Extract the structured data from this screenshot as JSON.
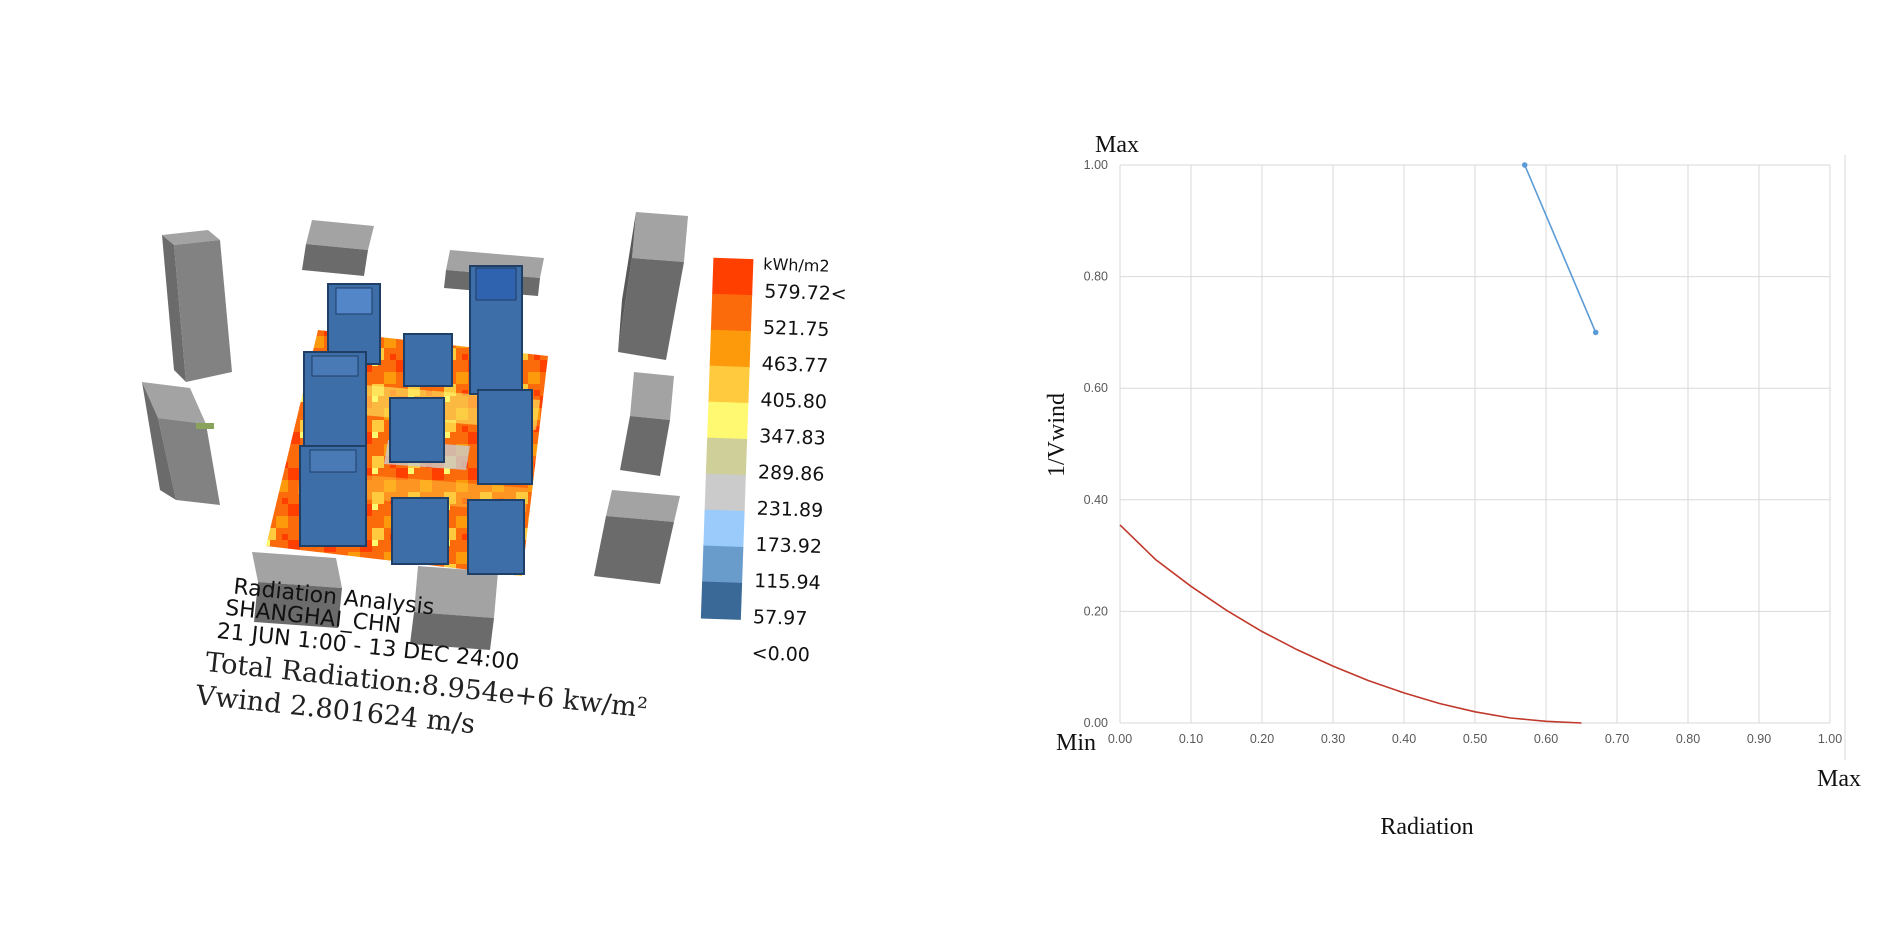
{
  "scene": {
    "legend": {
      "unit": "kWh/m2",
      "labels": [
        "579.72<",
        "521.75",
        "463.77",
        "405.80",
        "347.83",
        "289.86",
        "231.89",
        "173.92",
        "115.94",
        "57.97",
        "<0.00"
      ],
      "colors": [
        "#ff3f00",
        "#fb6a0b",
        "#fd9a0c",
        "#ffca3e",
        "#fef971",
        "#cfcf9a",
        "#cbcbcb",
        "#9bcbfb",
        "#699bcb",
        "#3a6897"
      ]
    },
    "info": {
      "line1": "Radiation Analysis",
      "line2": "SHANGHAI_CHN",
      "line3": "21 JUN 1:00 - 13 DEC 24:00",
      "line4": "Total Radiation:8.954e+6  kw/m²",
      "line5": "Vwind 2.801624 m/s"
    },
    "colors": {
      "context_top": "#a3a3a3",
      "context_side": "#6b6b6b",
      "context_front": "#828282",
      "tower_face": "#3d6ea8",
      "tower_edge": "#1f3f66"
    }
  },
  "chart_data": {
    "type": "scatter",
    "title": "",
    "xlabel": "Radiation",
    "ylabel": "1/Vwind",
    "xlim": [
      0,
      1
    ],
    "ylim": [
      0,
      1
    ],
    "x_ticks": [
      "0.00",
      "0.10",
      "0.20",
      "0.30",
      "0.40",
      "0.50",
      "0.60",
      "0.70",
      "0.80",
      "0.90",
      "1.00"
    ],
    "y_ticks": [
      "0.00",
      "0.20",
      "0.40",
      "0.60",
      "0.80",
      "1.00"
    ],
    "corner_labels": {
      "y_max": "Max",
      "origin": "Min",
      "x_max": "Max"
    },
    "grid": true,
    "series": [
      {
        "name": "points",
        "color": "#5b9bd5",
        "marker": true,
        "x": [
          0.57,
          0.67
        ],
        "y": [
          1.0,
          0.7
        ]
      },
      {
        "name": "curve",
        "color": "#c0392b",
        "marker": false,
        "x": [
          0.0,
          0.05,
          0.1,
          0.15,
          0.2,
          0.25,
          0.3,
          0.35,
          0.4,
          0.45,
          0.5,
          0.55,
          0.6,
          0.65
        ],
        "y": [
          0.355,
          0.293,
          0.245,
          0.202,
          0.164,
          0.131,
          0.102,
          0.076,
          0.054,
          0.035,
          0.02,
          0.009,
          0.003,
          0.0
        ]
      }
    ]
  }
}
